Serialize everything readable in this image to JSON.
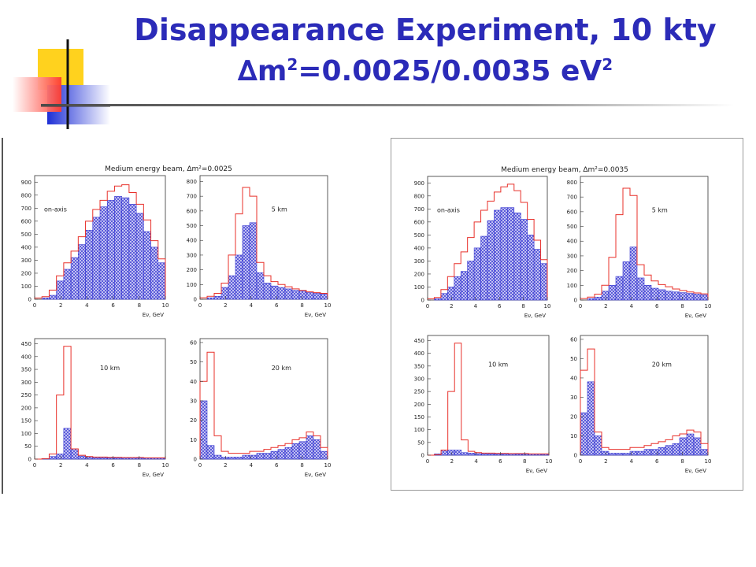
{
  "slide": {
    "title_line1": "Disappearance Experiment, 10 kty",
    "title_delta": "∆",
    "title_m": "m",
    "title_exp1": "2",
    "title_values": "=0.0025/0.0035 eV",
    "title_exp2": "2",
    "colors": {
      "title": "#2b2bb8",
      "expected": "#e8302a",
      "observed": "#3232d0"
    }
  },
  "chart_data": [
    {
      "type": "histogram",
      "title": "Medium energy beam, ∆m²=0.0025",
      "panels": [
        {
          "label": "on-axis",
          "xlabel": "Eν, GeV",
          "xlim": [
            0,
            10
          ],
          "ylim": [
            0,
            950
          ],
          "yticks": [
            0,
            100,
            200,
            300,
            400,
            500,
            600,
            700,
            800,
            900
          ],
          "xticks": [
            0,
            2,
            4,
            6,
            8,
            10
          ],
          "series": [
            {
              "name": "",
              "values": [
                10,
                20,
                70,
                180,
                280,
                370,
                480,
                600,
                690,
                760,
                830,
                870,
                880,
                820,
                730,
                610,
                450,
                310
              ]
            },
            {
              "name": "",
              "values": [
                0,
                10,
                30,
                140,
                230,
                320,
                420,
                530,
                630,
                710,
                760,
                790,
                780,
                730,
                660,
                520,
                400,
                280
              ]
            }
          ]
        },
        {
          "label": "5 km",
          "xlabel": "Eν, GeV",
          "xlim": [
            0,
            10
          ],
          "ylim": [
            0,
            840
          ],
          "yticks": [
            0,
            100,
            200,
            300,
            400,
            500,
            600,
            700,
            800
          ],
          "xticks": [
            0,
            2,
            4,
            6,
            8,
            10
          ],
          "series": [
            {
              "name": "",
              "values": [
                10,
                20,
                40,
                110,
                300,
                580,
                760,
                700,
                250,
                160,
                120,
                100,
                85,
                70,
                60,
                50,
                45,
                40
              ]
            },
            {
              "name": "",
              "values": [
                0,
                10,
                20,
                80,
                160,
                300,
                500,
                520,
                180,
                110,
                90,
                80,
                70,
                60,
                55,
                45,
                40,
                35
              ]
            }
          ]
        },
        {
          "label": "10 km",
          "xlabel": "Eν, GeV",
          "xlim": [
            0,
            10
          ],
          "ylim": [
            0,
            470
          ],
          "yticks": [
            0,
            50,
            100,
            150,
            200,
            250,
            300,
            350,
            400,
            450
          ],
          "xticks": [
            0,
            2,
            4,
            6,
            8,
            10
          ],
          "series": [
            {
              "name": "",
              "values": [
                0,
                2,
                20,
                250,
                440,
                40,
                15,
                10,
                8,
                8,
                7,
                7,
                6,
                6,
                6,
                5,
                5,
                5
              ]
            },
            {
              "name": "",
              "values": [
                0,
                2,
                10,
                20,
                120,
                40,
                12,
                8,
                6,
                6,
                5,
                5,
                5,
                5,
                4,
                4,
                4,
                4
              ]
            }
          ]
        },
        {
          "label": "20 km",
          "xlabel": "Eν, GeV",
          "xlim": [
            0,
            10
          ],
          "ylim": [
            0,
            62
          ],
          "yticks": [
            0,
            10,
            20,
            30,
            40,
            50,
            60
          ],
          "xticks": [
            0,
            2,
            4,
            6,
            8,
            10
          ],
          "series": [
            {
              "name": "",
              "values": [
                40,
                55,
                12,
                4,
                3,
                3,
                3,
                4,
                4,
                5,
                6,
                7,
                8,
                10,
                11,
                14,
                12,
                6
              ]
            },
            {
              "name": "",
              "values": [
                30,
                7,
                2,
                1,
                1,
                1,
                2,
                2,
                3,
                3,
                4,
                5,
                6,
                8,
                9,
                12,
                10,
                4
              ]
            }
          ]
        }
      ]
    },
    {
      "type": "histogram",
      "title": "Medium energy beam, ∆m²=0.0035",
      "panels": [
        {
          "label": "on-axis",
          "xlabel": "Eν, GeV",
          "xlim": [
            0,
            10
          ],
          "ylim": [
            0,
            950
          ],
          "yticks": [
            0,
            100,
            200,
            300,
            400,
            500,
            600,
            700,
            800,
            900
          ],
          "xticks": [
            0,
            2,
            4,
            6,
            8,
            10
          ],
          "series": [
            {
              "name": "",
              "values": [
                10,
                20,
                80,
                180,
                280,
                370,
                480,
                600,
                690,
                760,
                830,
                870,
                890,
                840,
                750,
                620,
                460,
                310
              ]
            },
            {
              "name": "",
              "values": [
                0,
                10,
                50,
                100,
                180,
                220,
                300,
                400,
                490,
                610,
                690,
                710,
                710,
                670,
                620,
                500,
                390,
                280
              ]
            }
          ]
        },
        {
          "label": "5 km",
          "xlabel": "Eν, GeV",
          "xlim": [
            0,
            10
          ],
          "ylim": [
            0,
            840
          ],
          "yticks": [
            0,
            100,
            200,
            300,
            400,
            500,
            600,
            700,
            800
          ],
          "xticks": [
            0,
            2,
            4,
            6,
            8,
            10
          ],
          "series": [
            {
              "name": "",
              "values": [
                10,
                20,
                40,
                100,
                290,
                580,
                760,
                710,
                240,
                170,
                130,
                105,
                90,
                75,
                65,
                55,
                48,
                42
              ]
            },
            {
              "name": "",
              "values": [
                0,
                10,
                20,
                60,
                100,
                160,
                260,
                360,
                150,
                100,
                80,
                70,
                60,
                55,
                50,
                45,
                40,
                35
              ]
            }
          ]
        },
        {
          "label": "10 km",
          "xlabel": "Eν, GeV",
          "xlim": [
            0,
            10
          ],
          "ylim": [
            0,
            470
          ],
          "yticks": [
            0,
            50,
            100,
            150,
            200,
            250,
            300,
            350,
            400,
            450
          ],
          "xticks": [
            0,
            2,
            4,
            6,
            8,
            10
          ],
          "series": [
            {
              "name": "",
              "values": [
                0,
                2,
                20,
                250,
                440,
                60,
                15,
                10,
                8,
                8,
                7,
                7,
                6,
                6,
                6,
                5,
                5,
                5
              ]
            },
            {
              "name": "",
              "values": [
                0,
                5,
                20,
                20,
                20,
                10,
                8,
                6,
                6,
                5,
                5,
                5,
                5,
                4,
                4,
                4,
                4,
                4
              ]
            }
          ]
        },
        {
          "label": "20 km",
          "xlabel": "Eν, GeV",
          "xlim": [
            0,
            10
          ],
          "ylim": [
            0,
            62
          ],
          "yticks": [
            0,
            10,
            20,
            30,
            40,
            50,
            60
          ],
          "xticks": [
            0,
            2,
            4,
            6,
            8,
            10
          ],
          "series": [
            {
              "name": "",
              "values": [
                44,
                55,
                12,
                4,
                3,
                3,
                3,
                4,
                4,
                5,
                6,
                7,
                8,
                10,
                11,
                13,
                12,
                6
              ]
            },
            {
              "name": "",
              "values": [
                22,
                38,
                10,
                2,
                1,
                1,
                1,
                2,
                2,
                3,
                3,
                4,
                5,
                6,
                9,
                11,
                9,
                3
              ]
            }
          ]
        }
      ]
    }
  ]
}
